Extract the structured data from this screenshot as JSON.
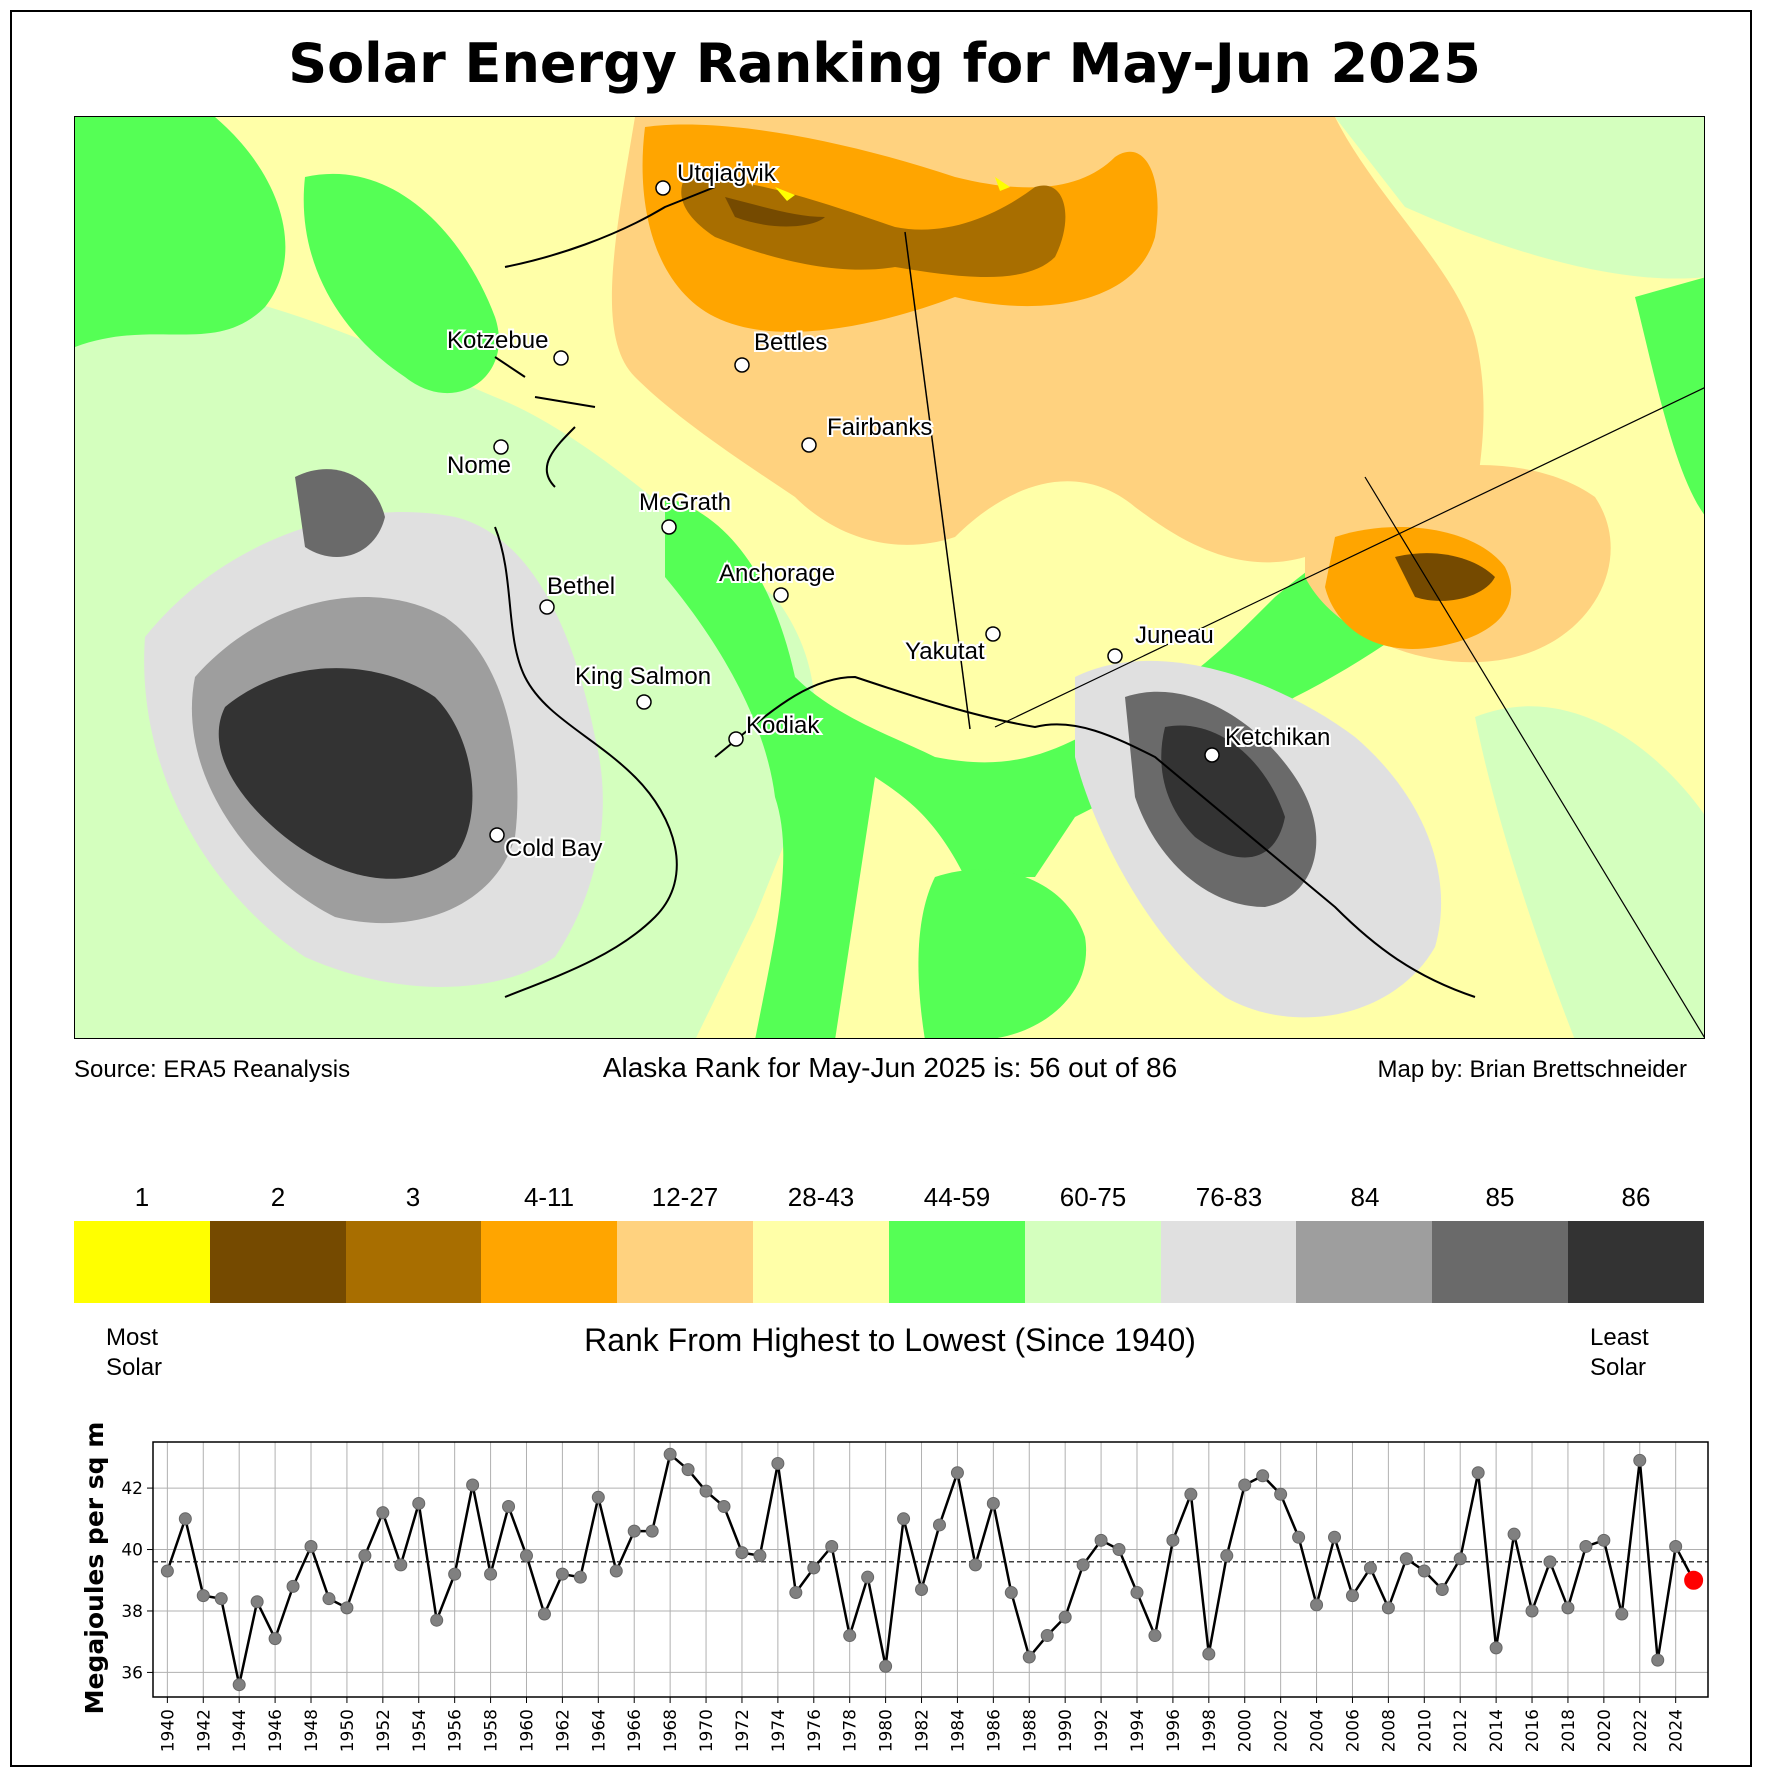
{
  "title": "Solar Energy Ranking for May-Jun 2025",
  "source": "Source: ERA5 Reanalysis",
  "rank_text": "Alaska Rank for May-Jun 2025 is: 56 out of 86",
  "map_by": "Map by: Brian Brettschneider",
  "cities": [
    {
      "name": "Utqiaġvik"
    },
    {
      "name": "Kotzebue"
    },
    {
      "name": "Bettles"
    },
    {
      "name": "Fairbanks"
    },
    {
      "name": "Nome"
    },
    {
      "name": "McGrath"
    },
    {
      "name": "Anchorage"
    },
    {
      "name": "Bethel"
    },
    {
      "name": "Yakutat"
    },
    {
      "name": "Juneau"
    },
    {
      "name": "King Salmon"
    },
    {
      "name": "Kodiak"
    },
    {
      "name": "Ketchikan"
    },
    {
      "name": "Cold Bay"
    }
  ],
  "legend": {
    "items": [
      {
        "label": "1",
        "color": "#ffff00"
      },
      {
        "label": "2",
        "color": "#754a00"
      },
      {
        "label": "3",
        "color": "#a86e00"
      },
      {
        "label": "4-11",
        "color": "#ffa500"
      },
      {
        "label": "12-27",
        "color": "#ffd27f"
      },
      {
        "label": "28-43",
        "color": "#ffffa8"
      },
      {
        "label": "44-59",
        "color": "#55ff55"
      },
      {
        "label": "60-75",
        "color": "#d4ffbe"
      },
      {
        "label": "76-83",
        "color": "#e0e0e0"
      },
      {
        "label": "84",
        "color": "#9e9e9e"
      },
      {
        "label": "85",
        "color": "#6a6a6a"
      },
      {
        "label": "86",
        "color": "#333333"
      }
    ],
    "most_label_1": "Most",
    "most_label_2": "Solar",
    "least_label_1": "Least",
    "least_label_2": "Solar",
    "axis_title": "Rank From Highest to Lowest (Since 1940)"
  },
  "chart_data": {
    "type": "line",
    "title": "",
    "xlabel": "",
    "ylabel": "Megajoules per sq m",
    "xlim": [
      1939.2,
      2025.8
    ],
    "ylim": [
      35.2,
      43.5
    ],
    "yticks": [
      36,
      38,
      40,
      42
    ],
    "mean": 39.6,
    "highlight_year": 2025,
    "highlight_color": "#ff0000",
    "series": [
      {
        "name": "May-Jun solar energy",
        "years": [
          1940,
          1941,
          1942,
          1943,
          1944,
          1945,
          1946,
          1947,
          1948,
          1949,
          1950,
          1951,
          1952,
          1953,
          1954,
          1955,
          1956,
          1957,
          1958,
          1959,
          1960,
          1961,
          1962,
          1963,
          1964,
          1965,
          1966,
          1967,
          1968,
          1969,
          1970,
          1971,
          1972,
          1973,
          1974,
          1975,
          1976,
          1977,
          1978,
          1979,
          1980,
          1981,
          1982,
          1983,
          1984,
          1985,
          1986,
          1987,
          1988,
          1989,
          1990,
          1991,
          1992,
          1993,
          1994,
          1995,
          1996,
          1997,
          1998,
          1999,
          2000,
          2001,
          2002,
          2003,
          2004,
          2005,
          2006,
          2007,
          2008,
          2009,
          2010,
          2011,
          2012,
          2013,
          2014,
          2015,
          2016,
          2017,
          2018,
          2019,
          2020,
          2021,
          2022,
          2023,
          2024,
          2025
        ],
        "values": [
          39.3,
          41.0,
          38.5,
          38.4,
          35.6,
          38.3,
          37.1,
          38.8,
          40.1,
          38.4,
          38.1,
          39.8,
          41.2,
          39.5,
          41.5,
          37.7,
          39.2,
          42.1,
          39.2,
          41.4,
          39.8,
          37.9,
          39.2,
          39.1,
          41.7,
          39.3,
          40.6,
          40.6,
          43.1,
          42.6,
          41.9,
          41.4,
          39.9,
          39.8,
          42.8,
          38.6,
          39.4,
          40.1,
          37.2,
          39.1,
          36.2,
          41.0,
          38.7,
          40.8,
          42.5,
          39.5,
          41.5,
          38.6,
          36.5,
          37.2,
          37.8,
          39.5,
          40.3,
          40.0,
          38.6,
          37.2,
          40.3,
          41.8,
          36.6,
          39.8,
          42.1,
          42.4,
          41.8,
          40.4,
          38.2,
          40.4,
          38.5,
          39.4,
          38.1,
          39.7,
          39.3,
          38.7,
          39.7,
          42.5,
          36.8,
          40.5,
          38.0,
          39.6,
          38.1,
          40.1,
          40.3,
          37.9,
          42.9,
          36.4,
          40.1,
          39.0
        ]
      }
    ],
    "xticks": [
      1940,
      1942,
      1944,
      1946,
      1948,
      1950,
      1952,
      1954,
      1956,
      1958,
      1960,
      1962,
      1964,
      1966,
      1968,
      1970,
      1972,
      1974,
      1976,
      1978,
      1980,
      1982,
      1984,
      1986,
      1988,
      1990,
      1992,
      1994,
      1996,
      1998,
      2000,
      2002,
      2004,
      2006,
      2008,
      2010,
      2012,
      2014,
      2016,
      2018,
      2020,
      2022,
      2024
    ]
  }
}
